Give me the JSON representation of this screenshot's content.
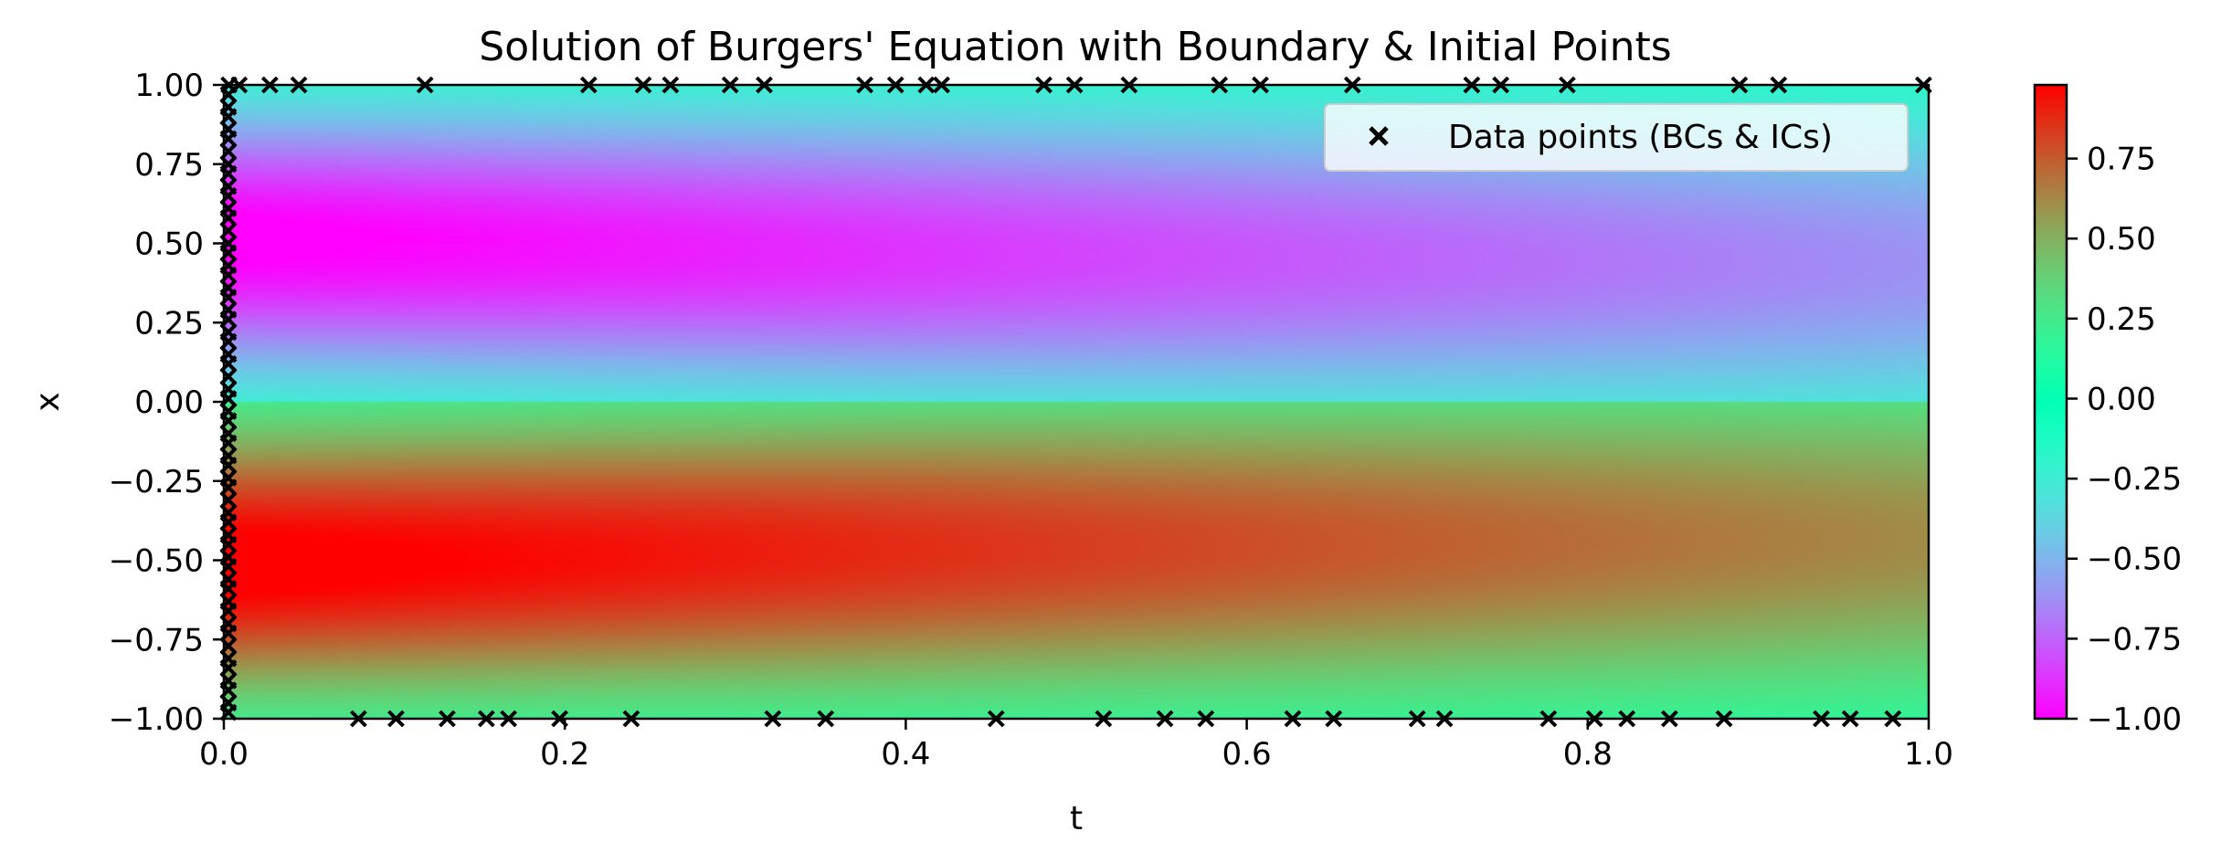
{
  "chart_data": {
    "type": "heatmap",
    "title": "Solution of Burgers' Equation with Boundary & Initial Points",
    "xlabel": "t",
    "ylabel": "x",
    "xlim": [
      0.0,
      1.0
    ],
    "ylim": [
      -1.0,
      1.0
    ],
    "colormap": "rainbow",
    "color_range": [
      -1.0,
      0.98
    ],
    "x_ticks": [
      0.0,
      0.2,
      0.4,
      0.6,
      0.8,
      1.0
    ],
    "x_tick_labels": [
      "0.0",
      "0.2",
      "0.4",
      "0.6",
      "0.8",
      "1.0"
    ],
    "y_ticks": [
      1.0,
      0.75,
      0.5,
      0.25,
      0.0,
      -0.25,
      -0.5,
      -0.75,
      -1.0
    ],
    "y_tick_labels": [
      "1.00",
      "0.75",
      "0.50",
      "0.25",
      "0.00",
      "−0.25",
      "−0.50",
      "−0.75",
      "−1.00"
    ],
    "colorbar_ticks": [
      0.75,
      0.5,
      0.25,
      0.0,
      -0.25,
      -0.5,
      -0.75,
      -1.0
    ],
    "colorbar_tick_labels": [
      "0.75",
      "0.50",
      "0.25",
      "0.00",
      "−0.25",
      "−0.50",
      "−0.75",
      "−1.00"
    ],
    "legend": {
      "label": "Data points (BCs & ICs)",
      "location": "upper right",
      "marker": "x"
    },
    "grid": false,
    "series": [
      {
        "name": "Data points (BCs & ICs)",
        "marker": "x",
        "color": "#000000",
        "boundary_top": {
          "x": 1.0,
          "t": [
            0.003,
            0.009,
            0.027,
            0.044,
            0.118,
            0.214,
            0.246,
            0.262,
            0.297,
            0.317,
            0.376,
            0.394,
            0.412,
            0.421,
            0.481,
            0.499,
            0.531,
            0.584,
            0.608,
            0.662,
            0.732,
            0.749,
            0.788,
            0.889,
            0.912,
            0.997
          ]
        },
        "boundary_bottom": {
          "x": -1.0,
          "t": [
            0.079,
            0.101,
            0.131,
            0.154,
            0.167,
            0.197,
            0.239,
            0.322,
            0.353,
            0.453,
            0.516,
            0.552,
            0.576,
            0.627,
            0.651,
            0.7,
            0.716,
            0.777,
            0.804,
            0.823,
            0.848,
            0.88,
            0.937,
            0.954,
            0.979
          ]
        },
        "initial": {
          "t": 0.0,
          "x": [
            0.97,
            0.93,
            0.9,
            0.86,
            0.83,
            0.79,
            0.75,
            0.72,
            0.68,
            0.65,
            0.61,
            0.58,
            0.54,
            0.5,
            0.47,
            0.43,
            0.4,
            0.36,
            0.33,
            0.29,
            0.26,
            0.22,
            0.19,
            0.15,
            0.12,
            0.08,
            0.04,
            0.01,
            -0.03,
            -0.06,
            -0.1,
            -0.13,
            -0.17,
            -0.2,
            -0.24,
            -0.27,
            -0.31,
            -0.35,
            -0.38,
            -0.42,
            -0.45,
            -0.49,
            -0.52,
            -0.56,
            -0.59,
            -0.63,
            -0.66,
            -0.7,
            -0.73,
            -0.77,
            -0.81,
            -0.84,
            -0.88,
            -0.91,
            -0.95,
            -0.98
          ]
        }
      }
    ]
  }
}
